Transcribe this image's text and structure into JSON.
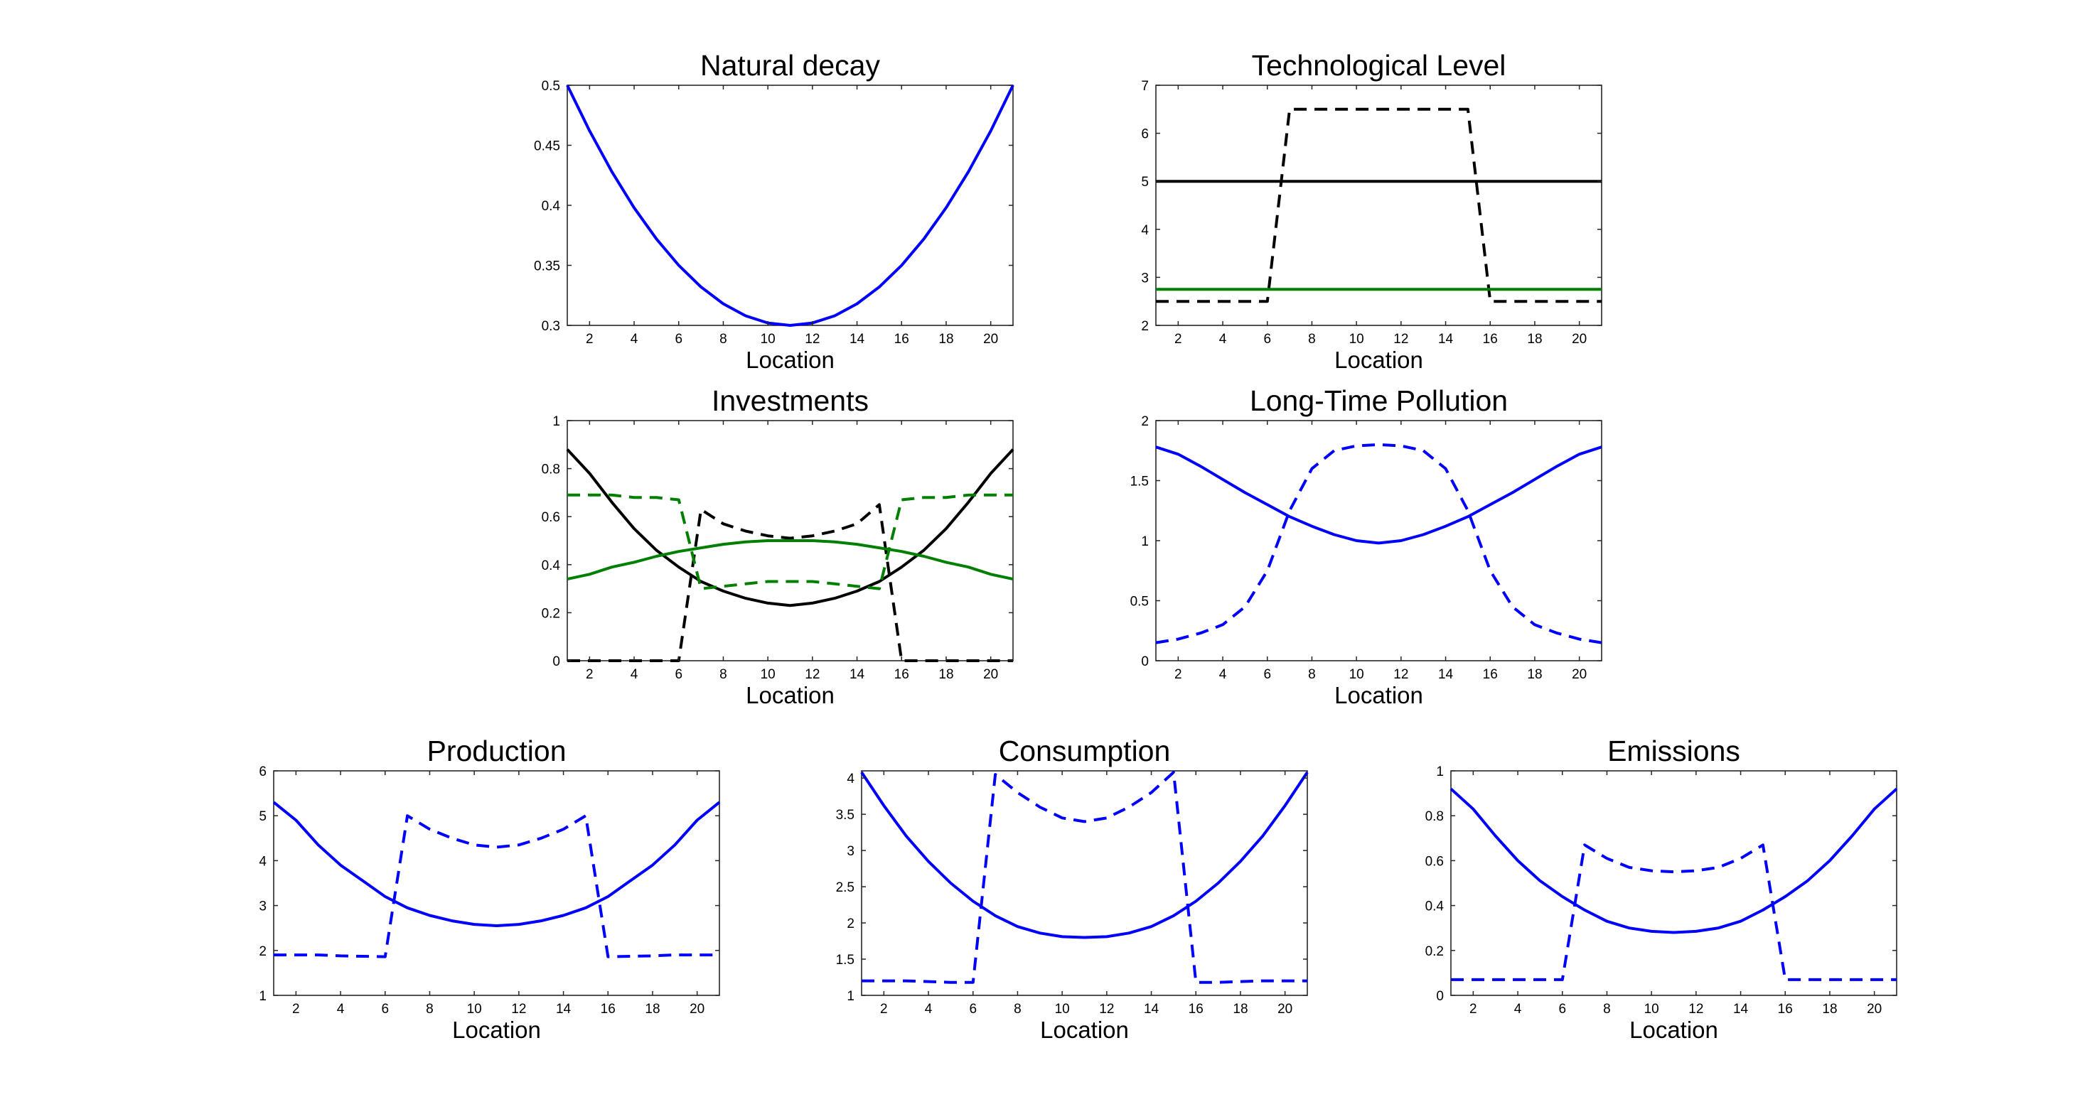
{
  "chart_data": [
    {
      "type": "line",
      "title": "Natural decay",
      "xlabel": "Location",
      "ylabel": "",
      "xlim": [
        1,
        21
      ],
      "ylim": [
        0.3,
        0.5
      ],
      "xticks": [
        2,
        4,
        6,
        8,
        10,
        12,
        14,
        16,
        18,
        20
      ],
      "yticks": [
        0.3,
        0.35,
        0.4,
        0.45,
        0.5
      ],
      "x": [
        1,
        2,
        3,
        4,
        5,
        6,
        7,
        8,
        9,
        10,
        11,
        12,
        13,
        14,
        15,
        16,
        17,
        18,
        19,
        20,
        21
      ],
      "series": [
        {
          "name": "decay",
          "color": "#0000ff",
          "style": "solid",
          "values": [
            0.5,
            0.462,
            0.428,
            0.398,
            0.372,
            0.35,
            0.332,
            0.318,
            0.308,
            0.302,
            0.3,
            0.302,
            0.308,
            0.318,
            0.332,
            0.35,
            0.372,
            0.398,
            0.428,
            0.462,
            0.5
          ]
        }
      ]
    },
    {
      "type": "line",
      "title": "Technological Level",
      "xlabel": "Location",
      "ylabel": "",
      "xlim": [
        1,
        21
      ],
      "ylim": [
        2,
        7
      ],
      "xticks": [
        2,
        4,
        6,
        8,
        10,
        12,
        14,
        16,
        18,
        20
      ],
      "yticks": [
        2,
        3,
        4,
        5,
        6,
        7
      ],
      "x": [
        1,
        2,
        3,
        4,
        5,
        6,
        7,
        8,
        9,
        10,
        11,
        12,
        13,
        14,
        15,
        16,
        17,
        18,
        19,
        20,
        21
      ],
      "series": [
        {
          "name": "black-solid",
          "color": "#000000",
          "style": "solid",
          "values": [
            5,
            5,
            5,
            5,
            5,
            5,
            5,
            5,
            5,
            5,
            5,
            5,
            5,
            5,
            5,
            5,
            5,
            5,
            5,
            5,
            5
          ]
        },
        {
          "name": "black-dashed",
          "color": "#000000",
          "style": "dashed",
          "values": [
            2.5,
            2.5,
            2.5,
            2.5,
            2.5,
            2.5,
            6.5,
            6.5,
            6.5,
            6.5,
            6.5,
            6.5,
            6.5,
            6.5,
            6.5,
            2.5,
            2.5,
            2.5,
            2.5,
            2.5,
            2.5
          ]
        },
        {
          "name": "green-solid",
          "color": "#007f00",
          "style": "solid",
          "values": [
            2.75,
            2.75,
            2.75,
            2.75,
            2.75,
            2.75,
            2.75,
            2.75,
            2.75,
            2.75,
            2.75,
            2.75,
            2.75,
            2.75,
            2.75,
            2.75,
            2.75,
            2.75,
            2.75,
            2.75,
            2.75
          ]
        }
      ]
    },
    {
      "type": "line",
      "title": "Investments",
      "xlabel": "Location",
      "ylabel": "",
      "xlim": [
        1,
        21
      ],
      "ylim": [
        0,
        1
      ],
      "xticks": [
        2,
        4,
        6,
        8,
        10,
        12,
        14,
        16,
        18,
        20
      ],
      "yticks": [
        0,
        0.2,
        0.4,
        0.6,
        0.8,
        1
      ],
      "x": [
        1,
        2,
        3,
        4,
        5,
        6,
        7,
        8,
        9,
        10,
        11,
        12,
        13,
        14,
        15,
        16,
        17,
        18,
        19,
        20,
        21
      ],
      "series": [
        {
          "name": "black-solid",
          "color": "#000000",
          "style": "solid",
          "values": [
            0.88,
            0.78,
            0.66,
            0.55,
            0.46,
            0.39,
            0.33,
            0.29,
            0.26,
            0.24,
            0.23,
            0.24,
            0.26,
            0.29,
            0.33,
            0.39,
            0.46,
            0.55,
            0.66,
            0.78,
            0.88
          ]
        },
        {
          "name": "black-dashed",
          "color": "#000000",
          "style": "dashed",
          "values": [
            0,
            0,
            0,
            0,
            0,
            0,
            0.63,
            0.57,
            0.54,
            0.52,
            0.51,
            0.52,
            0.54,
            0.57,
            0.65,
            0,
            0,
            0,
            0,
            0,
            0
          ]
        },
        {
          "name": "green-solid",
          "color": "#007f00",
          "style": "solid",
          "values": [
            0.34,
            0.36,
            0.39,
            0.41,
            0.435,
            0.455,
            0.47,
            0.485,
            0.495,
            0.5,
            0.5,
            0.5,
            0.495,
            0.485,
            0.47,
            0.455,
            0.435,
            0.41,
            0.39,
            0.36,
            0.34
          ]
        },
        {
          "name": "green-dashed",
          "color": "#007f00",
          "style": "dashed",
          "values": [
            0.69,
            0.69,
            0.69,
            0.68,
            0.68,
            0.67,
            0.3,
            0.31,
            0.32,
            0.33,
            0.33,
            0.33,
            0.32,
            0.31,
            0.3,
            0.67,
            0.68,
            0.68,
            0.69,
            0.69,
            0.69
          ]
        }
      ]
    },
    {
      "type": "line",
      "title": "Long-Time Pollution",
      "xlabel": "Location",
      "ylabel": "",
      "xlim": [
        1,
        21
      ],
      "ylim": [
        0,
        2
      ],
      "xticks": [
        2,
        4,
        6,
        8,
        10,
        12,
        14,
        16,
        18,
        20
      ],
      "yticks": [
        0,
        0.5,
        1,
        1.5,
        2
      ],
      "x": [
        1,
        2,
        3,
        4,
        5,
        6,
        7,
        8,
        9,
        10,
        11,
        12,
        13,
        14,
        15,
        16,
        17,
        18,
        19,
        20,
        21
      ],
      "series": [
        {
          "name": "blue-solid",
          "color": "#0000ff",
          "style": "solid",
          "values": [
            1.78,
            1.72,
            1.62,
            1.51,
            1.4,
            1.3,
            1.2,
            1.12,
            1.05,
            1.0,
            0.98,
            1.0,
            1.05,
            1.12,
            1.2,
            1.3,
            1.4,
            1.51,
            1.62,
            1.72,
            1.78
          ]
        },
        {
          "name": "blue-dashed",
          "color": "#0000ff",
          "style": "dashed",
          "values": [
            0.15,
            0.18,
            0.23,
            0.3,
            0.45,
            0.75,
            1.25,
            1.6,
            1.75,
            1.79,
            1.8,
            1.79,
            1.75,
            1.6,
            1.25,
            0.75,
            0.45,
            0.3,
            0.23,
            0.18,
            0.15
          ]
        }
      ]
    },
    {
      "type": "line",
      "title": "Production",
      "xlabel": "Location",
      "ylabel": "",
      "xlim": [
        1,
        21
      ],
      "ylim": [
        1,
        6
      ],
      "xticks": [
        2,
        4,
        6,
        8,
        10,
        12,
        14,
        16,
        18,
        20
      ],
      "yticks": [
        1,
        2,
        3,
        4,
        5,
        6
      ],
      "x": [
        1,
        2,
        3,
        4,
        5,
        6,
        7,
        8,
        9,
        10,
        11,
        12,
        13,
        14,
        15,
        16,
        17,
        18,
        19,
        20,
        21
      ],
      "series": [
        {
          "name": "blue-solid",
          "color": "#0000ff",
          "style": "solid",
          "values": [
            5.3,
            4.9,
            4.35,
            3.9,
            3.55,
            3.2,
            2.95,
            2.78,
            2.66,
            2.58,
            2.55,
            2.58,
            2.66,
            2.78,
            2.95,
            3.2,
            3.55,
            3.9,
            4.35,
            4.9,
            5.3
          ]
        },
        {
          "name": "blue-dashed",
          "color": "#0000ff",
          "style": "dashed",
          "values": [
            1.9,
            1.9,
            1.9,
            1.88,
            1.87,
            1.86,
            5.0,
            4.7,
            4.5,
            4.35,
            4.3,
            4.35,
            4.5,
            4.7,
            5.0,
            1.86,
            1.87,
            1.88,
            1.9,
            1.9,
            1.9
          ]
        }
      ]
    },
    {
      "type": "line",
      "title": "Consumption",
      "xlabel": "Location",
      "ylabel": "",
      "xlim": [
        1,
        21
      ],
      "ylim": [
        1,
        4.1
      ],
      "xticks": [
        2,
        4,
        6,
        8,
        10,
        12,
        14,
        16,
        18,
        20
      ],
      "yticks": [
        1,
        1.5,
        2,
        2.5,
        3,
        3.5,
        4
      ],
      "x": [
        1,
        2,
        3,
        4,
        5,
        6,
        7,
        8,
        9,
        10,
        11,
        12,
        13,
        14,
        15,
        16,
        17,
        18,
        19,
        20,
        21
      ],
      "series": [
        {
          "name": "blue-solid",
          "color": "#0000ff",
          "style": "solid",
          "values": [
            4.08,
            3.62,
            3.2,
            2.85,
            2.55,
            2.3,
            2.1,
            1.95,
            1.86,
            1.81,
            1.8,
            1.81,
            1.86,
            1.95,
            2.1,
            2.3,
            2.55,
            2.85,
            3.2,
            3.62,
            4.08
          ]
        },
        {
          "name": "blue-dashed",
          "color": "#0000ff",
          "style": "dashed",
          "values": [
            1.2,
            1.2,
            1.2,
            1.19,
            1.18,
            1.18,
            4.05,
            3.8,
            3.6,
            3.45,
            3.4,
            3.45,
            3.6,
            3.8,
            4.08,
            1.18,
            1.18,
            1.19,
            1.2,
            1.2,
            1.2
          ]
        }
      ]
    },
    {
      "type": "line",
      "title": "Emissions",
      "xlabel": "Location",
      "ylabel": "",
      "xlim": [
        1,
        21
      ],
      "ylim": [
        0,
        1
      ],
      "xticks": [
        2,
        4,
        6,
        8,
        10,
        12,
        14,
        16,
        18,
        20
      ],
      "yticks": [
        0,
        0.2,
        0.4,
        0.6,
        0.8,
        1
      ],
      "x": [
        1,
        2,
        3,
        4,
        5,
        6,
        7,
        8,
        9,
        10,
        11,
        12,
        13,
        14,
        15,
        16,
        17,
        18,
        19,
        20,
        21
      ],
      "series": [
        {
          "name": "blue-solid",
          "color": "#0000ff",
          "style": "solid",
          "values": [
            0.92,
            0.83,
            0.71,
            0.6,
            0.51,
            0.44,
            0.38,
            0.33,
            0.3,
            0.285,
            0.28,
            0.285,
            0.3,
            0.33,
            0.38,
            0.44,
            0.51,
            0.6,
            0.71,
            0.83,
            0.92
          ]
        },
        {
          "name": "blue-dashed",
          "color": "#0000ff",
          "style": "dashed",
          "values": [
            0.07,
            0.07,
            0.07,
            0.07,
            0.07,
            0.07,
            0.67,
            0.61,
            0.57,
            0.555,
            0.55,
            0.555,
            0.57,
            0.61,
            0.67,
            0.07,
            0.07,
            0.07,
            0.07,
            0.07,
            0.07
          ]
        }
      ]
    }
  ]
}
